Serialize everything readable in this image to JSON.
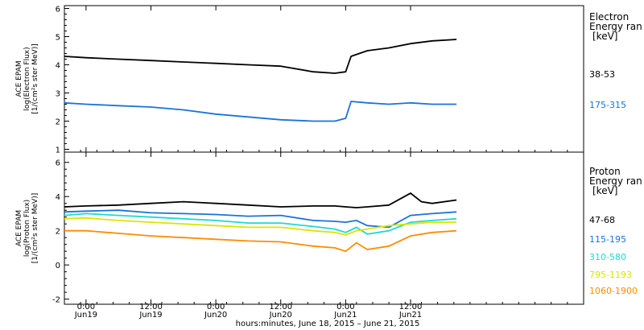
{
  "chart_data": [
    {
      "type": "line",
      "ylabel_lines": [
        "ACE EPAM",
        "log(Electron Flux)",
        "[1/(cm²s ster MeV)]"
      ],
      "ylim": [
        0.9,
        6.1
      ],
      "yticks": [
        1,
        2,
        3,
        4,
        5,
        6
      ],
      "legend_title_lines": [
        "Electron",
        "Energy ran",
        "[keV]"
      ],
      "series": [
        {
          "name": "38-53",
          "color": "#000000",
          "x": [
            -4,
            0,
            6,
            12,
            18,
            24,
            30,
            36,
            42,
            46,
            48,
            49,
            52,
            56,
            60,
            64,
            68.5
          ],
          "y": [
            4.3,
            4.25,
            4.2,
            4.15,
            4.1,
            4.05,
            4.0,
            3.95,
            3.75,
            3.7,
            3.75,
            4.3,
            4.5,
            4.6,
            4.75,
            4.85,
            4.9
          ]
        },
        {
          "name": "175-315",
          "color": "#1a73d9",
          "x": [
            -4,
            0,
            6,
            12,
            18,
            24,
            30,
            36,
            42,
            46,
            48,
            49,
            52,
            56,
            60,
            64,
            68.5
          ],
          "y": [
            2.65,
            2.6,
            2.55,
            2.5,
            2.4,
            2.25,
            2.15,
            2.05,
            2.0,
            2.0,
            2.1,
            2.7,
            2.65,
            2.6,
            2.65,
            2.6,
            2.6
          ]
        }
      ]
    },
    {
      "type": "line",
      "ylabel_lines": [
        "ACE EPAM",
        "log(Proton Flux)",
        "[1/(cm²s ster MeV)]"
      ],
      "ylim": [
        -2.3,
        6.6
      ],
      "yticks": [
        -2,
        0,
        2,
        4,
        6
      ],
      "legend_title_lines": [
        "Proton",
        "Energy ran",
        "[keV]"
      ],
      "series": [
        {
          "name": "47-68",
          "color": "#000000",
          "x": [
            -4,
            0,
            6,
            12,
            18,
            24,
            30,
            36,
            42,
            46,
            48,
            50,
            52,
            56,
            60,
            62,
            64,
            68.5
          ],
          "y": [
            3.4,
            3.45,
            3.5,
            3.6,
            3.7,
            3.6,
            3.5,
            3.4,
            3.45,
            3.45,
            3.4,
            3.35,
            3.4,
            3.5,
            4.2,
            3.7,
            3.6,
            3.8
          ]
        },
        {
          "name": "115-195",
          "color": "#1a73d9",
          "x": [
            -4,
            0,
            6,
            12,
            18,
            24,
            30,
            36,
            42,
            46,
            48,
            50,
            52,
            56,
            60,
            64,
            68.5
          ],
          "y": [
            3.1,
            3.15,
            3.2,
            3.05,
            3.0,
            2.95,
            2.85,
            2.9,
            2.6,
            2.55,
            2.5,
            2.6,
            2.3,
            2.2,
            2.9,
            3.0,
            3.1
          ]
        },
        {
          "name": "310-580",
          "color": "#1fd8d0",
          "x": [
            -4,
            0,
            6,
            12,
            18,
            24,
            30,
            36,
            42,
            46,
            48,
            50,
            52,
            56,
            60,
            64,
            68.5
          ],
          "y": [
            2.9,
            3.0,
            2.9,
            2.8,
            2.7,
            2.6,
            2.45,
            2.45,
            2.25,
            2.1,
            1.9,
            2.2,
            1.8,
            2.0,
            2.5,
            2.6,
            2.7
          ]
        },
        {
          "name": "795-1193",
          "color": "#d8e600",
          "x": [
            -4,
            0,
            6,
            12,
            18,
            24,
            30,
            36,
            42,
            46,
            48,
            50,
            52,
            56,
            60,
            64,
            68.5
          ],
          "y": [
            2.7,
            2.75,
            2.6,
            2.5,
            2.4,
            2.3,
            2.2,
            2.2,
            2.0,
            1.9,
            1.75,
            2.0,
            2.1,
            2.3,
            2.4,
            2.5,
            2.5
          ]
        },
        {
          "name": "1060-1900",
          "color": "#ff8c00",
          "x": [
            -4,
            0,
            6,
            12,
            18,
            24,
            30,
            36,
            42,
            46,
            48,
            50,
            52,
            56,
            60,
            64,
            68.5
          ],
          "y": [
            2.0,
            2.0,
            1.85,
            1.7,
            1.6,
            1.5,
            1.4,
            1.35,
            1.1,
            1.0,
            0.8,
            1.3,
            0.9,
            1.1,
            1.7,
            1.9,
            2.0
          ]
        }
      ]
    }
  ],
  "time_axis": {
    "xlim": [
      -4,
      92
    ],
    "ticks": [
      {
        "x": 0,
        "time": "0:00",
        "date": "Jun19"
      },
      {
        "x": 12,
        "time": "12:00",
        "date": "Jun19"
      },
      {
        "x": 24,
        "time": "0:00",
        "date": "Jun20"
      },
      {
        "x": 36,
        "time": "12:00",
        "date": "Jun20"
      },
      {
        "x": 48,
        "time": "0:00",
        "date": "Jun21"
      },
      {
        "x": 60,
        "time": "12:00",
        "date": "Jun21"
      }
    ],
    "xlabel": "hours:minutes, June 18, 2015 – June 21, 2015"
  }
}
